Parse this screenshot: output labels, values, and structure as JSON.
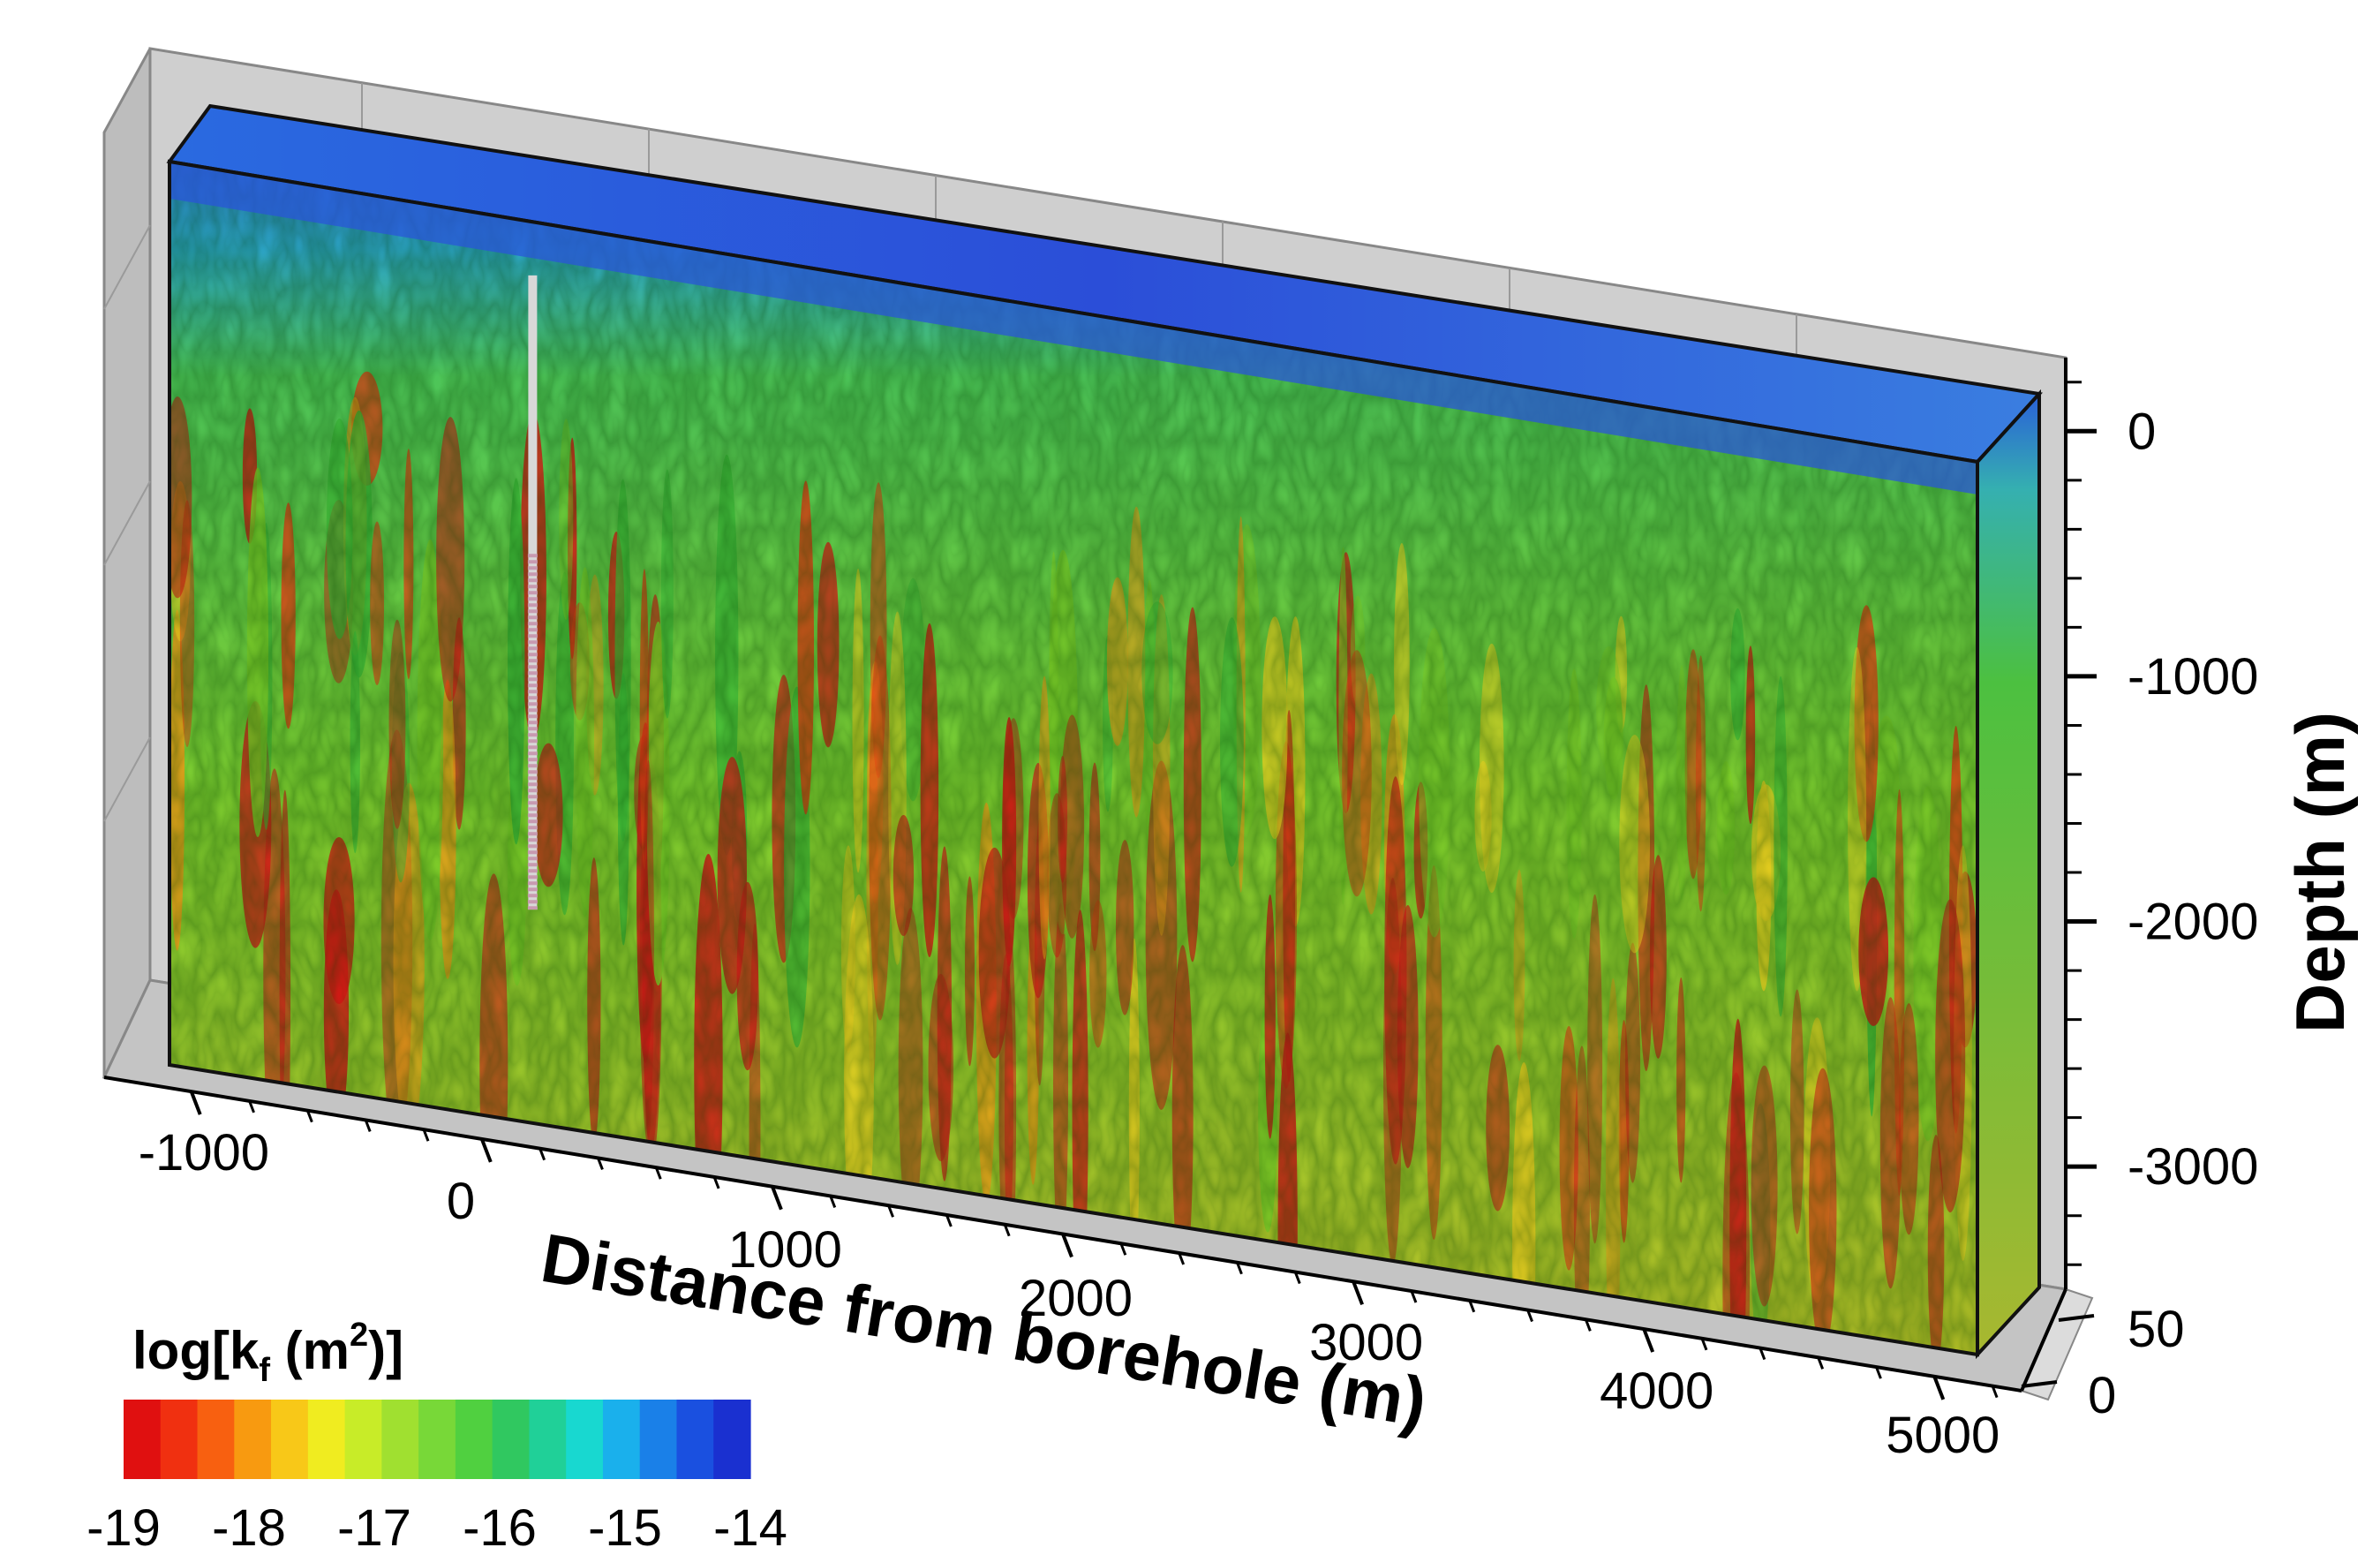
{
  "chart_data": {
    "type": "heatmap",
    "title": "",
    "xlabel": "Distance from borehole (m)",
    "ylabel": "Depth (m)",
    "x_ticks": [
      "-1000",
      "0",
      "1000",
      "2000",
      "3000",
      "4000",
      "5000"
    ],
    "y_ticks": [
      "0",
      "-1000",
      "-2000",
      "-3000"
    ],
    "z_ticks": [
      "50",
      "0"
    ],
    "xlim": [
      -1300,
      5300
    ],
    "ylim": [
      -3500,
      300
    ],
    "colorbar": {
      "title": "log[k",
      "title_sub": "f",
      "title_unit": " (m",
      "title_sup": "2",
      "title_end": ")]",
      "range": [
        -19,
        -14
      ],
      "ticks": [
        "-19",
        "-18",
        "-17",
        "-16",
        "-15",
        "-14"
      ],
      "colors": [
        "#e01010",
        "#f03010",
        "#f86010",
        "#f89a10",
        "#f8c818",
        "#f0ec20",
        "#c8ec28",
        "#a0e030",
        "#78d838",
        "#50d040",
        "#30c860",
        "#20d098",
        "#18d8d0",
        "#1ab0ec",
        "#1a80e8",
        "#1a50e0",
        "#1a30d0"
      ]
    },
    "borehole": {
      "top_depth": 0,
      "bottom_depth": -2600,
      "screen_top_depth": -1100
    },
    "field_description_colors": {
      "low": "#d41414",
      "mid": "#5ccc2a",
      "high": "#1e4ee0"
    }
  }
}
